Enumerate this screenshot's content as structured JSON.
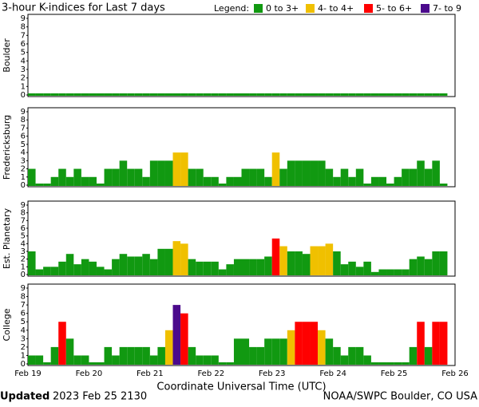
{
  "title": "3-hour K-indices for Last 7 days",
  "legend": {
    "label": "Legend:",
    "items": [
      {
        "name": "0 to 3+",
        "color": "#119911",
        "min": 0
      },
      {
        "name": "4- to 4+",
        "color": "#f0c000",
        "min": 3.67
      },
      {
        "name": "5- to 6+",
        "color": "#ff0000",
        "min": 4.67
      },
      {
        "name": "7- to 9",
        "color": "#4b0a8c",
        "min": 6.67
      }
    ]
  },
  "chart_data": [
    {
      "type": "bar",
      "ylabel": "Boulder",
      "ylim": [
        0,
        9
      ],
      "yticks": [
        0,
        1,
        2,
        3,
        4,
        5,
        6,
        7,
        8,
        9
      ],
      "values": [
        0,
        0,
        0,
        0,
        0,
        0,
        0,
        0,
        0,
        0,
        0,
        0,
        0,
        0,
        0,
        0,
        0,
        0,
        0,
        0,
        0,
        0,
        0,
        0,
        0,
        0,
        0,
        0,
        0,
        0,
        0,
        0,
        0,
        0,
        0,
        0,
        0,
        0,
        0,
        0,
        0,
        0,
        0,
        0,
        0,
        0,
        0,
        0,
        0,
        0,
        0,
        0,
        0,
        0,
        0,
        null
      ]
    },
    {
      "type": "bar",
      "ylabel": "Fredericksburg",
      "ylim": [
        0,
        9
      ],
      "yticks": [
        0,
        1,
        2,
        3,
        4,
        5,
        6,
        7,
        8,
        9
      ],
      "values": [
        2,
        0,
        0,
        1,
        2,
        1,
        2,
        1,
        1,
        0,
        2,
        2,
        3,
        2,
        2,
        1,
        3,
        3,
        3,
        4,
        4,
        2,
        2,
        1,
        1,
        0,
        1,
        1,
        2,
        2,
        2,
        1,
        4,
        2,
        3,
        3,
        3,
        3,
        3,
        2,
        1,
        2,
        1,
        2,
        0,
        1,
        1,
        0,
        1,
        2,
        2,
        3,
        2,
        3,
        0,
        null
      ]
    },
    {
      "type": "bar",
      "ylabel": "Est. Planetary",
      "ylim": [
        0,
        9
      ],
      "yticks": [
        0,
        1,
        2,
        3,
        4,
        5,
        6,
        7,
        8,
        9
      ],
      "values": [
        3,
        0.67,
        1,
        1,
        1.67,
        2.67,
        1.33,
        2,
        1.67,
        1,
        0.67,
        2,
        2.67,
        2.33,
        2.33,
        2.67,
        2,
        3.33,
        3.33,
        4.33,
        4,
        2,
        1.67,
        1.67,
        1.67,
        0.67,
        1.33,
        2,
        2,
        2,
        2,
        2.33,
        4.67,
        3.67,
        3,
        3,
        2.67,
        3.67,
        3.67,
        4,
        3,
        1.33,
        1.67,
        1,
        1.67,
        0.33,
        0.67,
        0.67,
        0.67,
        0.67,
        2,
        2.33,
        2,
        3,
        3,
        null
      ]
    },
    {
      "type": "bar",
      "ylabel": "College",
      "ylim": [
        0,
        9
      ],
      "yticks": [
        0,
        1,
        2,
        3,
        4,
        5,
        6,
        7,
        8,
        9
      ],
      "values": [
        1,
        1,
        0,
        2,
        5,
        3,
        1,
        1,
        0,
        0,
        2,
        1,
        2,
        2,
        2,
        2,
        1,
        2,
        4,
        7,
        6,
        2,
        1,
        1,
        1,
        0,
        0,
        3,
        3,
        2,
        2,
        3,
        3,
        3,
        4,
        5,
        5,
        5,
        4,
        3,
        2,
        1,
        2,
        2,
        1,
        0,
        0,
        0,
        0,
        0,
        2,
        5,
        2,
        5,
        5,
        null
      ],
      "x_labels": [
        "Feb 19",
        "Feb 20",
        "Feb 21",
        "Feb 22",
        "Feb 23",
        "Feb 24",
        "Feb 25",
        "Feb 26"
      ],
      "xlabel": "Coordinate Universal Time (UTC)"
    }
  ],
  "footer": {
    "label": "Updated",
    "date": "2023 Feb 25 2130",
    "source": "NOAA/SWPC Boulder, CO USA"
  }
}
